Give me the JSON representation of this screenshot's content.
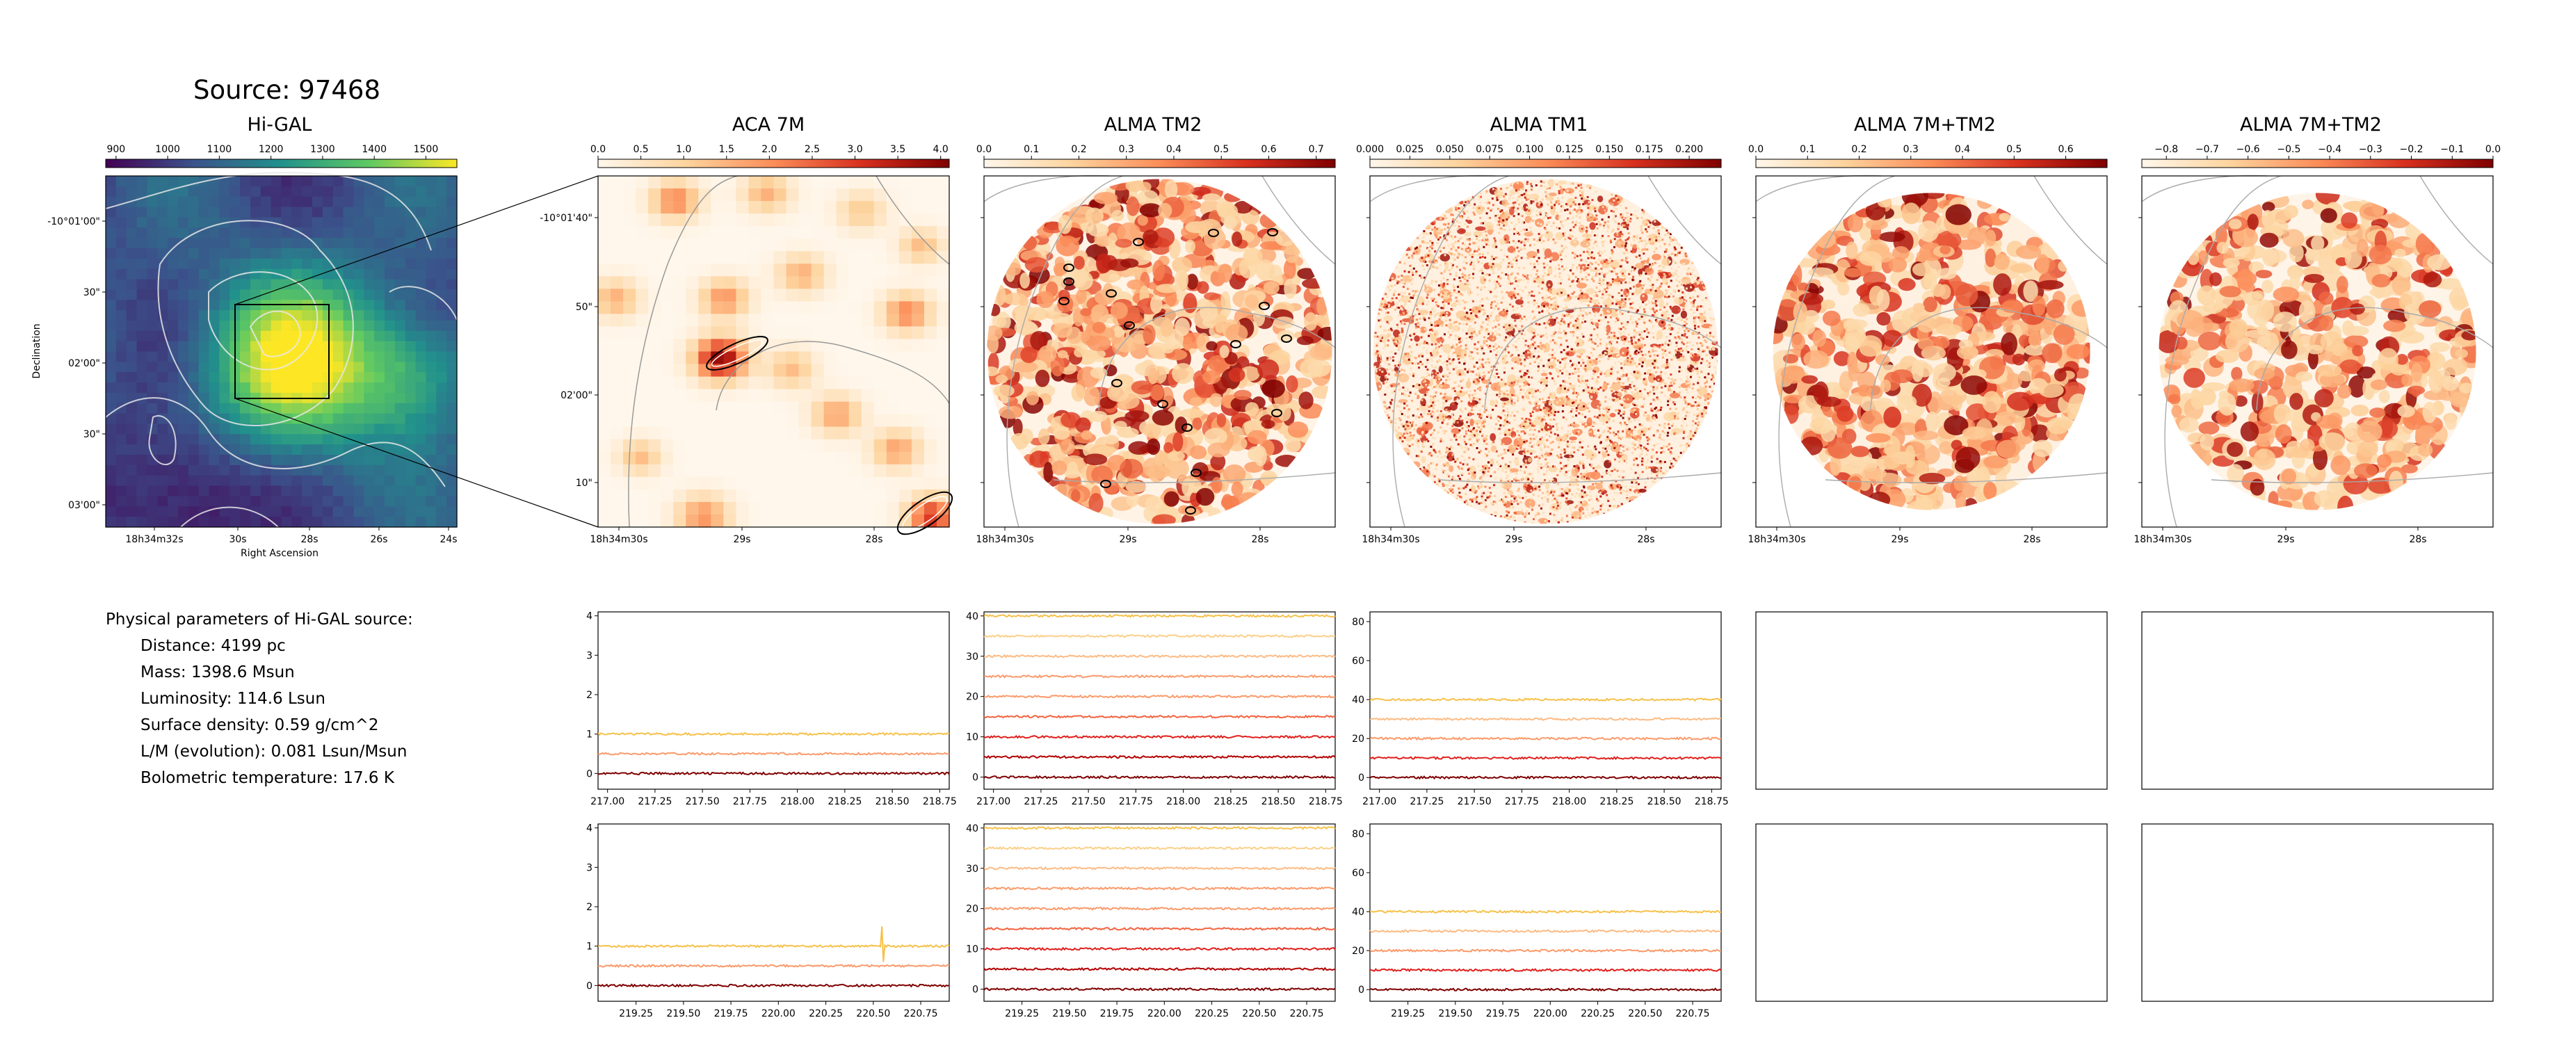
{
  "source_title": "Source: 97468",
  "panel_titles": [
    "Hi-GAL",
    "ACA 7M",
    "ALMA TM2",
    "ALMA TM1",
    "ALMA 7M+TM2",
    "ALMA 7M+TM2"
  ],
  "params": {
    "heading": "Physical parameters of Hi-GAL source:",
    "rows": [
      "Distance: 4199 pc",
      "Mass: 1398.6 Msun",
      "Luminosity: 114.6 Lsun",
      "Surface density: 0.59 g/cm^2",
      "L/M (evolution): 0.081 Lsun/Msun",
      "Bolometric temperature: 17.6 K"
    ]
  },
  "colors": {
    "viridis": [
      "#440154",
      "#3b528b",
      "#21918c",
      "#5ec962",
      "#fde725"
    ],
    "orrd": [
      "#fff7ec",
      "#fdd49e",
      "#fc8d59",
      "#d7301f",
      "#7f0000"
    ],
    "spectra": [
      "#7f0000",
      "#b30000",
      "#e0201c",
      "#f4633f",
      "#fb9a6a",
      "#fdbb84",
      "#fbd08a",
      "#f6c14a"
    ]
  },
  "chart_data": [
    {
      "type": "heatmap",
      "title": "Hi-GAL",
      "colorbar": {
        "ticks": [
          "900",
          "1000",
          "1100",
          "1200",
          "1300",
          "1400",
          "1500"
        ],
        "range": [
          880,
          1560
        ],
        "cmap": "viridis"
      },
      "xlabel": "Right Ascension",
      "ylabel": "Declination",
      "xticks": [
        "18h34m32s",
        "30s",
        "28s",
        "26s",
        "24s"
      ],
      "yticks": [
        "-10°01'00\"",
        "30\"",
        "02'00\"",
        "30\"",
        "03'00\""
      ]
    },
    {
      "type": "heatmap",
      "title": "ACA 7M",
      "colorbar": {
        "ticks": [
          "0.0",
          "0.5",
          "1.0",
          "1.5",
          "2.0",
          "2.5",
          "3.0",
          "3.5",
          "4.0"
        ],
        "range": [
          0,
          4.1
        ],
        "cmap": "OrRd"
      },
      "xticks": [
        "18h34m30s",
        "29s",
        "28s"
      ],
      "yticks": [
        "-10°01'40\"",
        "50\"",
        "02'00\"",
        "10\""
      ]
    },
    {
      "type": "heatmap",
      "title": "ALMA TM2",
      "colorbar": {
        "ticks": [
          "0.0",
          "0.1",
          "0.2",
          "0.3",
          "0.4",
          "0.5",
          "0.6",
          "0.7"
        ],
        "range": [
          0,
          0.74
        ],
        "cmap": "OrRd"
      },
      "xticks": [
        "18h34m30s",
        "29s",
        "28s"
      ]
    },
    {
      "type": "heatmap",
      "title": "ALMA TM1",
      "colorbar": {
        "ticks": [
          "0.000",
          "0.025",
          "0.050",
          "0.075",
          "0.100",
          "0.125",
          "0.150",
          "0.175",
          "0.200"
        ],
        "range": [
          0,
          0.22
        ],
        "cmap": "OrRd"
      },
      "xticks": [
        "18h34m30s",
        "29s",
        "28s"
      ]
    },
    {
      "type": "heatmap",
      "title": "ALMA 7M+TM2",
      "colorbar": {
        "ticks": [
          "0.0",
          "0.1",
          "0.2",
          "0.3",
          "0.4",
          "0.5",
          "0.6"
        ],
        "range": [
          0,
          0.68
        ],
        "cmap": "OrRd"
      },
      "xticks": [
        "18h34m30s",
        "29s",
        "28s"
      ]
    },
    {
      "type": "heatmap",
      "title": "ALMA 7M+TM2",
      "colorbar": {
        "ticks": [
          "−0.8",
          "−0.7",
          "−0.6",
          "−0.5",
          "−0.4",
          "−0.3",
          "−0.2",
          "−0.1",
          "0.0"
        ],
        "range": [
          -0.86,
          0
        ],
        "cmap": "OrRd"
      },
      "xticks": [
        "18h34m30s",
        "29s",
        "28s"
      ]
    },
    {
      "type": "line",
      "panel": "spectrum-aca-row1",
      "xlim": [
        216.95,
        218.8
      ],
      "ylim": [
        -0.4,
        4.1
      ],
      "xticks": [
        "217.00",
        "217.25",
        "217.50",
        "217.75",
        "218.00",
        "218.25",
        "218.50",
        "218.75"
      ],
      "yticks": [
        "0",
        "1",
        "2",
        "3",
        "4"
      ],
      "series": [
        {
          "values": [
            0,
            0
          ]
        },
        {
          "values": [
            0.5,
            0.5
          ]
        },
        {
          "values": [
            1.0,
            1.0
          ]
        }
      ]
    },
    {
      "type": "line",
      "panel": "spectrum-tm2-row1",
      "xlim": [
        216.95,
        218.8
      ],
      "ylim": [
        -3,
        41
      ],
      "xticks": [
        "217.00",
        "217.25",
        "217.50",
        "217.75",
        "218.00",
        "218.25",
        "218.50",
        "218.75"
      ],
      "yticks": [
        "0",
        "10",
        "20",
        "30",
        "40"
      ],
      "series": [
        {
          "values": [
            0,
            0
          ]
        },
        {
          "values": [
            5,
            5
          ]
        },
        {
          "values": [
            10,
            10
          ]
        },
        {
          "values": [
            15,
            15
          ]
        },
        {
          "values": [
            20,
            20
          ]
        },
        {
          "values": [
            25,
            25
          ]
        },
        {
          "values": [
            30,
            30
          ]
        },
        {
          "values": [
            35,
            35
          ]
        },
        {
          "values": [
            40,
            40
          ]
        }
      ]
    },
    {
      "type": "line",
      "panel": "spectrum-tm1-row1",
      "xlim": [
        216.95,
        218.8
      ],
      "ylim": [
        -6,
        85
      ],
      "xticks": [
        "217.00",
        "217.25",
        "217.50",
        "217.75",
        "218.00",
        "218.25",
        "218.50",
        "218.75"
      ],
      "yticks": [
        "0",
        "20",
        "40",
        "60",
        "80"
      ],
      "series": [
        {
          "values": [
            0,
            0
          ]
        },
        {
          "values": [
            10,
            10
          ]
        },
        {
          "values": [
            20,
            20
          ]
        },
        {
          "values": [
            30,
            30
          ]
        },
        {
          "values": [
            40,
            40
          ]
        }
      ]
    },
    {
      "type": "line",
      "panel": "spectrum-aca-row2",
      "xlim": [
        219.05,
        220.9
      ],
      "ylim": [
        -0.4,
        4.1
      ],
      "xticks": [
        "219.25",
        "219.50",
        "219.75",
        "220.00",
        "220.25",
        "220.50",
        "220.75"
      ],
      "yticks": [
        "0",
        "1",
        "2",
        "3",
        "4"
      ],
      "series": [
        {
          "values": [
            0,
            0
          ]
        },
        {
          "values": [
            0.5,
            0.5
          ]
        },
        {
          "values": [
            1.0,
            1.0
          ]
        }
      ]
    },
    {
      "type": "line",
      "panel": "spectrum-tm2-row2",
      "xlim": [
        219.05,
        220.9
      ],
      "ylim": [
        -3,
        41
      ],
      "xticks": [
        "219.25",
        "219.50",
        "219.75",
        "220.00",
        "220.25",
        "220.50",
        "220.75"
      ],
      "yticks": [
        "0",
        "10",
        "20",
        "30",
        "40"
      ],
      "series": [
        {
          "values": [
            0,
            0
          ]
        },
        {
          "values": [
            5,
            5
          ]
        },
        {
          "values": [
            10,
            10
          ]
        },
        {
          "values": [
            15,
            15
          ]
        },
        {
          "values": [
            20,
            20
          ]
        },
        {
          "values": [
            25,
            25
          ]
        },
        {
          "values": [
            30,
            30
          ]
        },
        {
          "values": [
            35,
            35
          ]
        },
        {
          "values": [
            40,
            40
          ]
        }
      ]
    },
    {
      "type": "line",
      "panel": "spectrum-tm1-row2",
      "xlim": [
        219.05,
        220.9
      ],
      "ylim": [
        -6,
        85
      ],
      "xticks": [
        "219.25",
        "219.50",
        "219.75",
        "220.00",
        "220.25",
        "220.50",
        "220.75"
      ],
      "yticks": [
        "0",
        "20",
        "40",
        "60",
        "80"
      ],
      "series": [
        {
          "values": [
            0,
            0
          ]
        },
        {
          "values": [
            10,
            10
          ]
        },
        {
          "values": [
            20,
            20
          ]
        },
        {
          "values": [
            30,
            30
          ]
        },
        {
          "values": [
            40,
            40
          ]
        }
      ]
    }
  ]
}
